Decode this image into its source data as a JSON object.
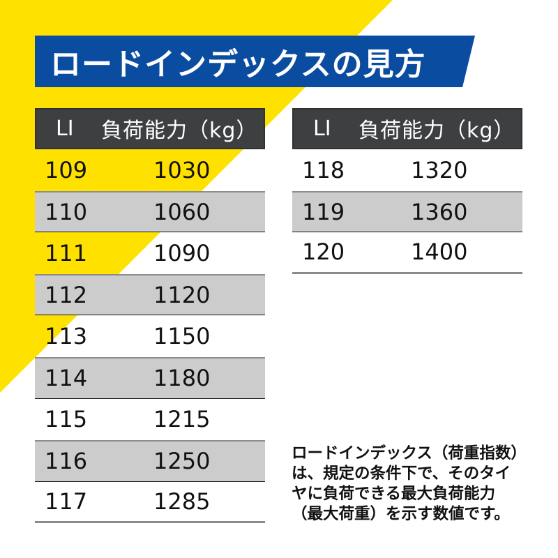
{
  "title": "ロードインデックスの見方",
  "colors": {
    "background_accent": "#ffe100",
    "banner": "#0a4ca0",
    "table_header": "#3d3f41",
    "shaded_row": "#cccccc"
  },
  "table_headers": {
    "li": "LI",
    "capacity": "負荷能力（kg）"
  },
  "left_table": {
    "rows": [
      {
        "li": "109",
        "capacity": "1030",
        "shaded": false
      },
      {
        "li": "110",
        "capacity": "1060",
        "shaded": true
      },
      {
        "li": "111",
        "capacity": "1090",
        "shaded": false
      },
      {
        "li": "112",
        "capacity": "1120",
        "shaded": true
      },
      {
        "li": "113",
        "capacity": "1150",
        "shaded": false
      },
      {
        "li": "114",
        "capacity": "1180",
        "shaded": true
      },
      {
        "li": "115",
        "capacity": "1215",
        "shaded": false
      },
      {
        "li": "116",
        "capacity": "1250",
        "shaded": true
      },
      {
        "li": "117",
        "capacity": "1285",
        "shaded": false
      }
    ]
  },
  "right_table": {
    "rows": [
      {
        "li": "118",
        "capacity": "1320",
        "shaded": false
      },
      {
        "li": "119",
        "capacity": "1360",
        "shaded": true
      },
      {
        "li": "120",
        "capacity": "1400",
        "shaded": false
      }
    ]
  },
  "note": {
    "lines": [
      "ロードインデックス（荷重指数）",
      "は、規定の条件下で、そのタイ",
      "ヤに負荷できる最大負荷能力",
      "（最大荷重）を示す数値です。"
    ]
  }
}
